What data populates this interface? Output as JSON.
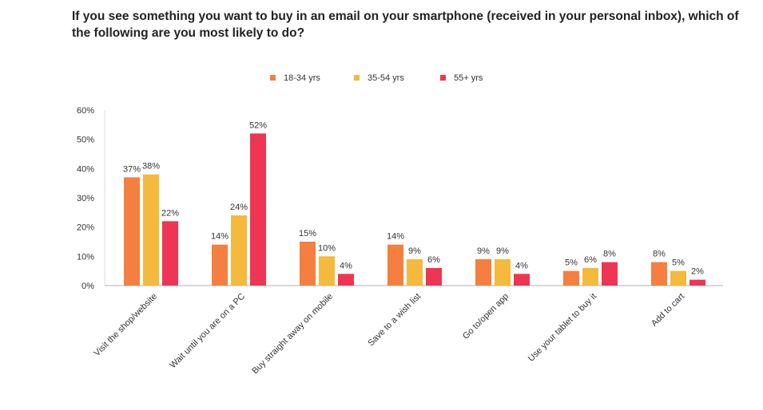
{
  "chart_data": {
    "type": "bar",
    "title": "If you see something you want to buy in an email on your smartphone (received in your personal inbox), which of the following are you most likely to do?",
    "categories": [
      "Visit the shop/website",
      "Wait until you are on a PC",
      "Buy straight away on mobile",
      "Save to a wish list",
      "Go to/open app",
      "Use your tablet to buy it",
      "Add to cart"
    ],
    "series": [
      {
        "name": "18-34 yrs",
        "color": "#F47F40",
        "values": [
          37,
          14,
          15,
          14,
          9,
          5,
          8
        ]
      },
      {
        "name": "35-54 yrs",
        "color": "#F5B93D",
        "values": [
          38,
          24,
          10,
          9,
          9,
          6,
          5
        ]
      },
      {
        "name": "55+ yrs",
        "color": "#EE3553",
        "values": [
          22,
          52,
          4,
          6,
          4,
          8,
          2
        ]
      }
    ],
    "data_labels": [
      [
        "37%",
        "14%",
        "15%",
        "14%",
        "9%",
        "5%",
        "8%"
      ],
      [
        "38%",
        "24%",
        "10%",
        "9%",
        "9%",
        "6%",
        "5%"
      ],
      [
        "22%",
        "52%",
        "4%",
        "6%",
        "4%",
        "8%",
        "2%"
      ]
    ],
    "yticks": [
      "0%",
      "10%",
      "20%",
      "30%",
      "40%",
      "50%",
      "60%"
    ],
    "ylim": [
      0,
      60
    ],
    "xlabel": "",
    "ylabel": "",
    "legend_position": "top-center",
    "grid": false
  }
}
